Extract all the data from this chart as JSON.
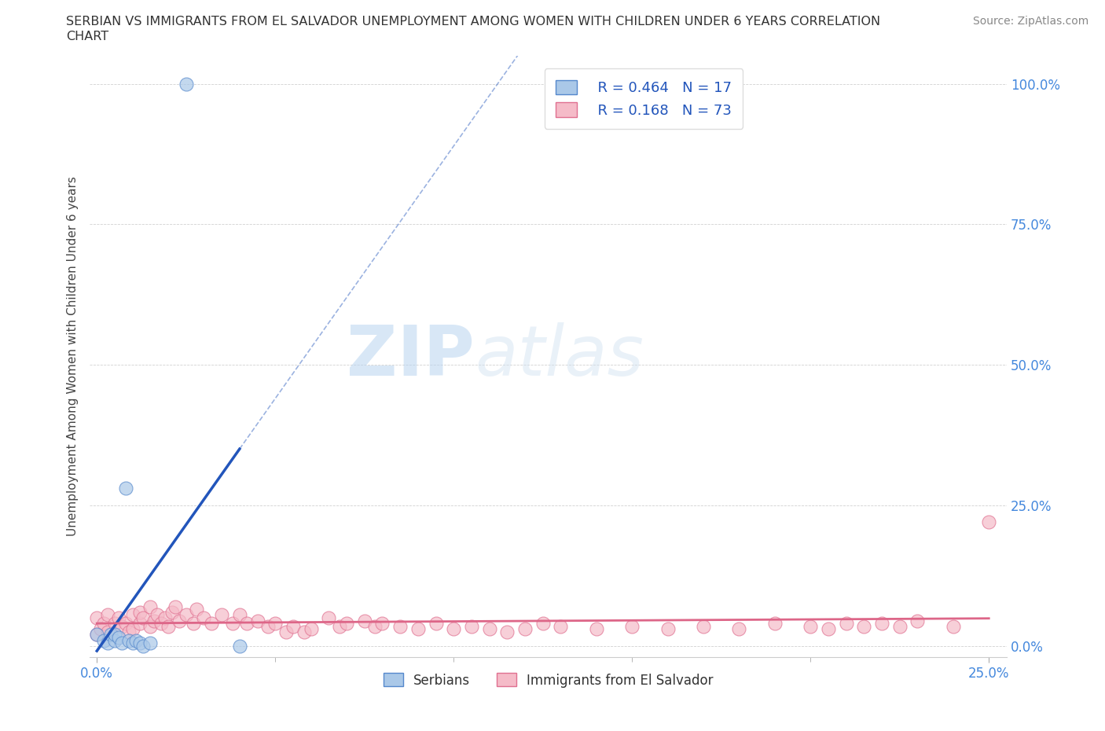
{
  "title_line1": "SERBIAN VS IMMIGRANTS FROM EL SALVADOR UNEMPLOYMENT AMONG WOMEN WITH CHILDREN UNDER 6 YEARS CORRELATION",
  "title_line2": "CHART",
  "source": "Source: ZipAtlas.com",
  "ylabel": "Unemployment Among Women with Children Under 6 years",
  "xlim": [
    -0.002,
    0.255
  ],
  "ylim": [
    -0.02,
    1.05
  ],
  "xticks": [
    0.0,
    0.25
  ],
  "yticks": [
    0.0,
    0.25,
    0.5,
    0.75,
    1.0
  ],
  "xtick_labels": [
    "0.0%",
    "25.0%"
  ],
  "ytick_labels": [
    "0.0%",
    "25.0%",
    "50.0%",
    "75.0%",
    "100.0%"
  ],
  "ytick_color": "#4488dd",
  "xtick_color": "#4488dd",
  "serbian_color": "#aac8e8",
  "salvador_color": "#f5bbc8",
  "serbian_edge": "#5588cc",
  "salvador_edge": "#e07090",
  "regression_serbian_color": "#2255bb",
  "regression_salvador_color": "#dd6688",
  "watermark_zip": "ZIP",
  "watermark_atlas": "atlas",
  "legend_r_serbian": "R = 0.464",
  "legend_n_serbian": "N = 17",
  "legend_r_salvador": "R = 0.168",
  "legend_n_salvador": "N = 73",
  "serbian_x": [
    0.0,
    0.002,
    0.003,
    0.004,
    0.005,
    0.005,
    0.006,
    0.007,
    0.008,
    0.009,
    0.01,
    0.011,
    0.012,
    0.013,
    0.015,
    0.025,
    0.04
  ],
  "serbian_y": [
    0.02,
    0.01,
    0.005,
    0.02,
    0.01,
    0.02,
    0.015,
    0.005,
    0.28,
    0.01,
    0.005,
    0.01,
    0.005,
    0.0,
    0.005,
    1.0,
    0.0
  ],
  "salvador_x": [
    0.0,
    0.0,
    0.001,
    0.002,
    0.003,
    0.003,
    0.005,
    0.006,
    0.007,
    0.008,
    0.009,
    0.01,
    0.01,
    0.012,
    0.012,
    0.013,
    0.015,
    0.015,
    0.016,
    0.017,
    0.018,
    0.019,
    0.02,
    0.021,
    0.022,
    0.023,
    0.025,
    0.027,
    0.028,
    0.03,
    0.032,
    0.035,
    0.038,
    0.04,
    0.042,
    0.045,
    0.048,
    0.05,
    0.053,
    0.055,
    0.058,
    0.06,
    0.065,
    0.068,
    0.07,
    0.075,
    0.078,
    0.08,
    0.085,
    0.09,
    0.095,
    0.1,
    0.105,
    0.11,
    0.115,
    0.12,
    0.125,
    0.13,
    0.14,
    0.15,
    0.16,
    0.17,
    0.18,
    0.19,
    0.2,
    0.205,
    0.21,
    0.215,
    0.22,
    0.225,
    0.23,
    0.24,
    0.25
  ],
  "salvador_y": [
    0.02,
    0.05,
    0.03,
    0.04,
    0.025,
    0.055,
    0.04,
    0.05,
    0.035,
    0.04,
    0.025,
    0.03,
    0.055,
    0.04,
    0.06,
    0.05,
    0.035,
    0.07,
    0.045,
    0.055,
    0.04,
    0.05,
    0.035,
    0.06,
    0.07,
    0.045,
    0.055,
    0.04,
    0.065,
    0.05,
    0.04,
    0.055,
    0.04,
    0.055,
    0.04,
    0.045,
    0.035,
    0.04,
    0.025,
    0.035,
    0.025,
    0.03,
    0.05,
    0.035,
    0.04,
    0.045,
    0.035,
    0.04,
    0.035,
    0.03,
    0.04,
    0.03,
    0.035,
    0.03,
    0.025,
    0.03,
    0.04,
    0.035,
    0.03,
    0.035,
    0.03,
    0.035,
    0.03,
    0.04,
    0.035,
    0.03,
    0.04,
    0.035,
    0.04,
    0.035,
    0.045,
    0.035,
    0.22
  ]
}
